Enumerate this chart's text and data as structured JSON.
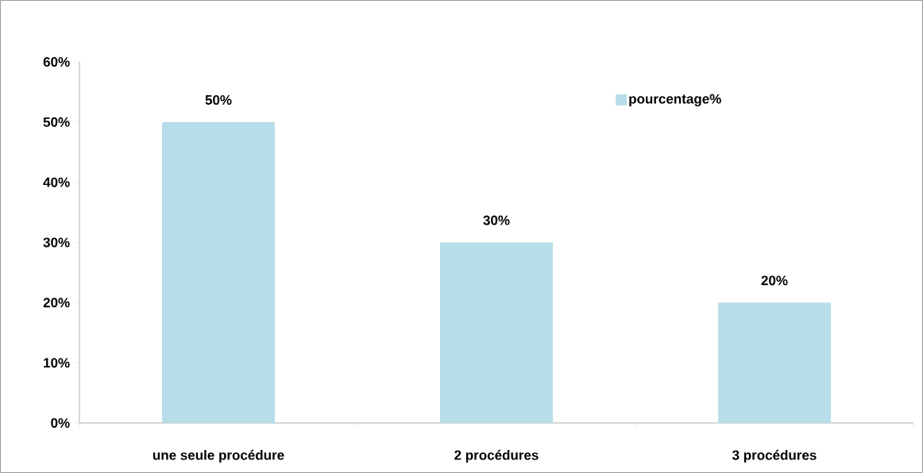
{
  "chart_data": {
    "type": "bar",
    "categories": [
      "une seule procédure",
      "2 procédures",
      "3 procédures"
    ],
    "series": [
      {
        "name": "pourcentage%",
        "color": "#b7dde8",
        "values": [
          50,
          30,
          20
        ],
        "value_labels": [
          "50%",
          "30%",
          "20%"
        ]
      }
    ],
    "ylim": [
      0,
      60
    ],
    "yticks": [
      {
        "value": 0,
        "label": "0%"
      },
      {
        "value": 10,
        "label": "10%"
      },
      {
        "value": 20,
        "label": "20%"
      },
      {
        "value": 30,
        "label": "30%"
      },
      {
        "value": 40,
        "label": "40%"
      },
      {
        "value": 50,
        "label": "50%"
      },
      {
        "value": 60,
        "label": "60%"
      }
    ],
    "grid": false,
    "legend": "top right"
  }
}
